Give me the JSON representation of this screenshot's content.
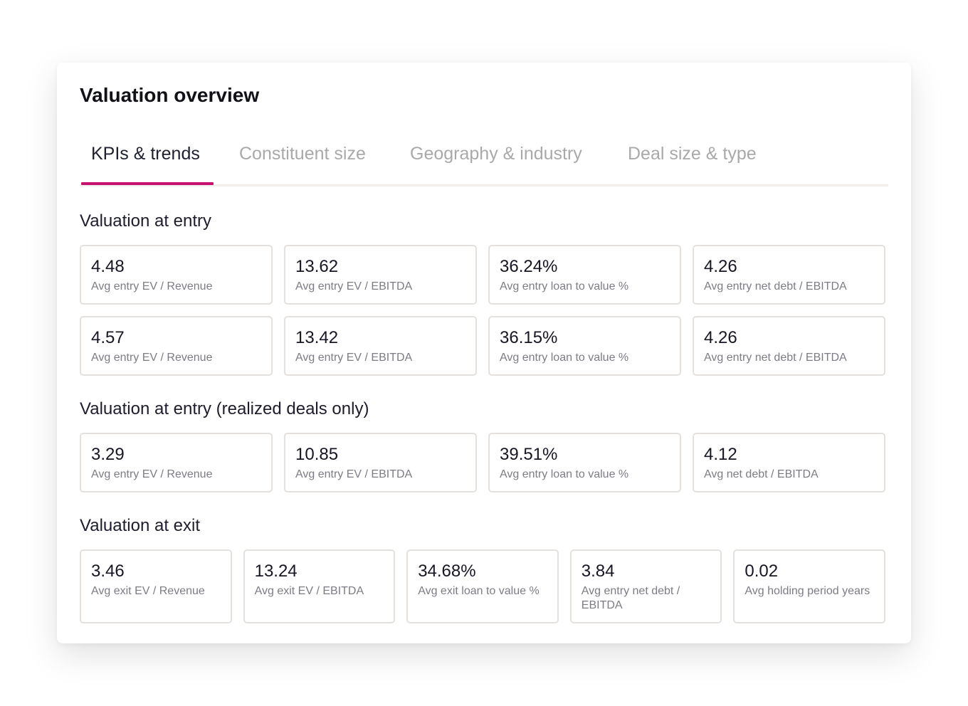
{
  "card": {
    "title": "Valuation overview"
  },
  "tabs": [
    {
      "label": "KPIs & trends",
      "active": true
    },
    {
      "label": "Constituent size",
      "active": false
    },
    {
      "label": "Geography & industry",
      "active": false
    },
    {
      "label": "Deal size & type",
      "active": false
    }
  ],
  "sections": [
    {
      "title": "Valuation at entry",
      "rows": [
        [
          {
            "value": "4.48",
            "label": "Avg entry EV / Revenue"
          },
          {
            "value": "13.62",
            "label": "Avg entry EV / EBITDA"
          },
          {
            "value": "36.24%",
            "label": "Avg entry loan to value %"
          },
          {
            "value": "4.26",
            "label": "Avg entry net debt / EBITDA"
          }
        ],
        [
          {
            "value": "4.57",
            "label": "Avg entry EV / Revenue"
          },
          {
            "value": "13.42",
            "label": "Avg entry EV / EBITDA"
          },
          {
            "value": "36.15%",
            "label": "Avg entry loan to value %"
          },
          {
            "value": "4.26",
            "label": "Avg entry net debt / EBITDA"
          }
        ]
      ]
    },
    {
      "title": "Valuation at entry (realized deals only)",
      "rows": [
        [
          {
            "value": "3.29",
            "label": "Avg entry EV / Revenue"
          },
          {
            "value": "10.85",
            "label": "Avg entry EV / EBITDA"
          },
          {
            "value": "39.51%",
            "label": "Avg entry loan to value %"
          },
          {
            "value": "4.12",
            "label": "Avg net debt / EBITDA"
          }
        ]
      ]
    },
    {
      "title": "Valuation at exit",
      "rows": [
        [
          {
            "value": "3.46",
            "label": "Avg exit EV / Revenue"
          },
          {
            "value": "13.24",
            "label": "Avg exit EV / EBITDA"
          },
          {
            "value": "34.68%",
            "label": "Avg exit loan to value %"
          },
          {
            "value": "3.84",
            "label": "Avg entry net debt / EBITDA"
          },
          {
            "value": "0.02",
            "label": "Avg holding period years"
          }
        ]
      ]
    }
  ]
}
